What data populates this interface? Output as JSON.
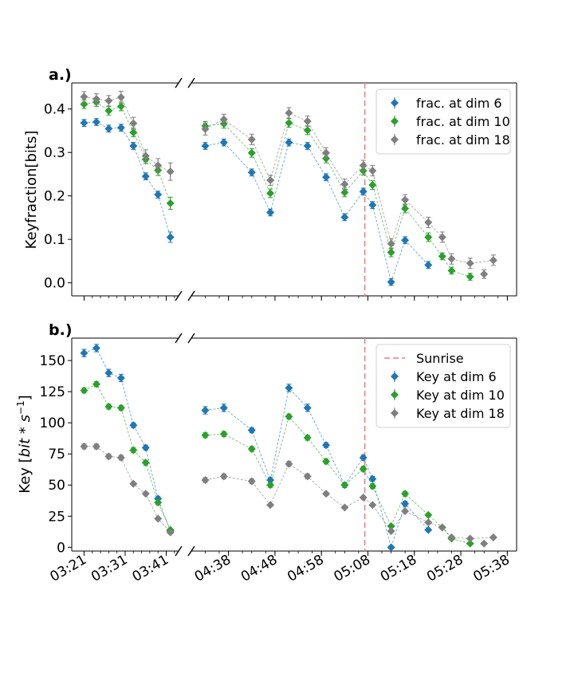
{
  "chart_data": [
    {
      "type": "scatter",
      "panel_label": "a.)",
      "ylabel": "Keyfraction[bits]",
      "ylim": [
        -0.03,
        0.46
      ],
      "yticks": [
        "0.0",
        "0.1",
        "0.2",
        "0.3",
        "0.4"
      ],
      "ytick_values": [
        0.0,
        0.1,
        0.2,
        0.3,
        0.4
      ],
      "broken_x_axis": true,
      "legend_position": "upper right",
      "sunrise_time": "05:07:20",
      "series": [
        {
          "name": "frac. at dim 6",
          "color": "#1f77b4",
          "x": [
            "03:21",
            "03:24",
            "03:27",
            "03:30",
            "03:33",
            "03:36",
            "03:39",
            "03:42",
            "04:33",
            "04:37",
            "04:43",
            "04:47",
            "04:51",
            "04:55",
            "04:59",
            "05:03",
            "05:07",
            "05:09",
            "05:13",
            "05:16",
            "05:21",
            "05:24",
            "05:26",
            "05:30",
            "05:35"
          ],
          "y": [
            0.368,
            0.37,
            0.355,
            0.357,
            0.315,
            0.245,
            0.203,
            0.105,
            0.315,
            0.323,
            0.254,
            0.162,
            0.323,
            0.315,
            0.243,
            0.151,
            0.21,
            0.179,
            0.002,
            0.098,
            0.041,
            null,
            null,
            null,
            null
          ],
          "err": [
            0.008,
            0.008,
            0.008,
            0.008,
            0.008,
            0.008,
            0.008,
            0.012,
            0.008,
            0.008,
            0.008,
            0.008,
            0.008,
            0.008,
            0.008,
            0.008,
            0.008,
            0.008,
            0.008,
            0.008,
            0.008,
            null,
            null,
            null,
            null
          ]
        },
        {
          "name": "frac. at dim 10",
          "color": "#2ca02c",
          "x": [
            "03:21",
            "03:24",
            "03:27",
            "03:30",
            "03:33",
            "03:36",
            "03:39",
            "03:42",
            "04:33",
            "04:37",
            "04:43",
            "04:47",
            "04:51",
            "04:55",
            "04:59",
            "05:03",
            "05:07",
            "05:09",
            "05:13",
            "05:16",
            "05:21",
            "05:24",
            "05:26",
            "05:30",
            "05:35"
          ],
          "y": [
            0.411,
            0.416,
            0.396,
            0.406,
            0.346,
            0.284,
            0.259,
            0.183,
            0.361,
            0.366,
            0.299,
            0.206,
            0.368,
            0.351,
            0.286,
            0.208,
            0.258,
            0.225,
            0.07,
            0.171,
            0.105,
            0.061,
            0.028,
            0.014,
            null
          ],
          "err": [
            0.01,
            0.01,
            0.01,
            0.01,
            0.01,
            0.01,
            0.012,
            0.014,
            0.01,
            0.01,
            0.01,
            0.01,
            0.01,
            0.01,
            0.01,
            0.01,
            0.01,
            0.01,
            0.01,
            0.01,
            0.01,
            0.008,
            0.008,
            0.008,
            null
          ]
        },
        {
          "name": "frac. at dim 18",
          "color": "#7f7f7f",
          "x": [
            "03:21",
            "03:24",
            "03:27",
            "03:30",
            "03:33",
            "03:36",
            "03:39",
            "03:42",
            "04:33",
            "04:37",
            "04:43",
            "04:47",
            "04:51",
            "04:55",
            "04:59",
            "05:03",
            "05:07",
            "05:09",
            "05:13",
            "05:16",
            "05:21",
            "05:24",
            "05:26",
            "05:30",
            "05:35"
          ],
          "y": [
            0.428,
            0.423,
            0.419,
            0.427,
            0.367,
            0.292,
            0.27,
            0.256,
            0.354,
            0.376,
            0.33,
            0.236,
            0.391,
            0.372,
            0.299,
            0.227,
            0.27,
            0.258,
            0.09,
            0.191,
            0.139,
            0.105,
            0.055,
            0.045,
            0.052
          ],
          "err": [
            0.012,
            0.012,
            0.012,
            0.014,
            0.014,
            0.014,
            0.016,
            0.02,
            0.014,
            0.012,
            0.012,
            0.012,
            0.012,
            0.012,
            0.012,
            0.012,
            0.012,
            0.012,
            0.012,
            0.012,
            0.012,
            0.012,
            0.012,
            0.012,
            0.012
          ],
          "extra_points": [
            {
              "x": "05:33",
              "y": 0.02,
              "err": 0.01
            }
          ]
        }
      ]
    },
    {
      "type": "scatter",
      "panel_label": "b.)",
      "ylabel": "Key [bit*s^-1]",
      "ylim": [
        -3,
        168
      ],
      "yticks": [
        "0",
        "25",
        "50",
        "75",
        "100",
        "125",
        "150"
      ],
      "ytick_values": [
        0,
        25,
        50,
        75,
        100,
        125,
        150
      ],
      "xticks": [
        "03:21",
        "03:31",
        "03:41",
        "04:38",
        "04:48",
        "04:58",
        "05:08",
        "05:18",
        "05:28",
        "05:38"
      ],
      "broken_x_axis": true,
      "legend_position": "upper right",
      "sunrise_label": "Sunrise",
      "series": [
        {
          "name": "Key at dim 6",
          "color": "#1f77b4",
          "x": [
            "03:21",
            "03:24",
            "03:27",
            "03:30",
            "03:33",
            "03:36",
            "03:39",
            "03:42",
            "04:33",
            "04:37",
            "04:43",
            "04:47",
            "04:51",
            "04:55",
            "04:59",
            "05:03",
            "05:07",
            "05:09",
            "05:13",
            "05:16",
            "05:21",
            "05:24",
            "05:26",
            "05:30",
            "05:35"
          ],
          "y": [
            156,
            160,
            140,
            136,
            98,
            80,
            39,
            13,
            110,
            112,
            94,
            54,
            128,
            112,
            82,
            50,
            72,
            55,
            0,
            35,
            14,
            null,
            null,
            null,
            null
          ],
          "err": [
            3,
            3,
            3,
            3,
            2,
            2,
            2,
            2,
            3,
            3,
            2,
            2,
            3,
            3,
            2,
            2,
            2,
            2,
            1,
            2,
            1,
            null,
            null,
            null,
            null
          ]
        },
        {
          "name": "Key at dim 10",
          "color": "#2ca02c",
          "x": [
            "03:21",
            "03:24",
            "03:27",
            "03:30",
            "03:33",
            "03:36",
            "03:39",
            "03:42",
            "04:33",
            "04:37",
            "04:43",
            "04:47",
            "04:51",
            "04:55",
            "04:59",
            "05:03",
            "05:07",
            "05:09",
            "05:13",
            "05:16",
            "05:21",
            "05:24",
            "05:26",
            "05:30",
            "05:35"
          ],
          "y": [
            126,
            131,
            113,
            112,
            78,
            68,
            36,
            14,
            90,
            91,
            79,
            50,
            105,
            88,
            69,
            50,
            63,
            49,
            17,
            43,
            26,
            16,
            7,
            3,
            null
          ],
          "err": [
            2,
            2,
            2,
            2,
            2,
            2,
            2,
            1,
            2,
            2,
            2,
            2,
            2,
            2,
            2,
            2,
            2,
            2,
            1,
            2,
            1,
            1,
            1,
            1,
            null
          ]
        },
        {
          "name": "Key at dim 18",
          "color": "#7f7f7f",
          "x": [
            "03:21",
            "03:24",
            "03:27",
            "03:30",
            "03:33",
            "03:36",
            "03:39",
            "03:42",
            "04:33",
            "04:37",
            "04:43",
            "04:47",
            "04:51",
            "04:55",
            "04:59",
            "05:03",
            "05:07",
            "05:09",
            "05:13",
            "05:16",
            "05:21",
            "05:24",
            "05:26",
            "05:30",
            "05:35"
          ],
          "y": [
            81,
            81,
            73,
            72,
            51,
            43,
            23,
            12,
            54,
            57,
            53,
            34,
            67,
            57,
            43,
            32,
            40,
            34,
            13,
            29,
            20,
            16,
            8,
            7,
            8
          ],
          "err": [
            2,
            2,
            2,
            2,
            1,
            1,
            1,
            1,
            2,
            2,
            2,
            1,
            2,
            2,
            1,
            1,
            1,
            1,
            1,
            1,
            1,
            1,
            1,
            1,
            1
          ],
          "extra_points": [
            {
              "x": "05:33",
              "y": 3,
              "err": 1
            }
          ]
        }
      ]
    }
  ]
}
